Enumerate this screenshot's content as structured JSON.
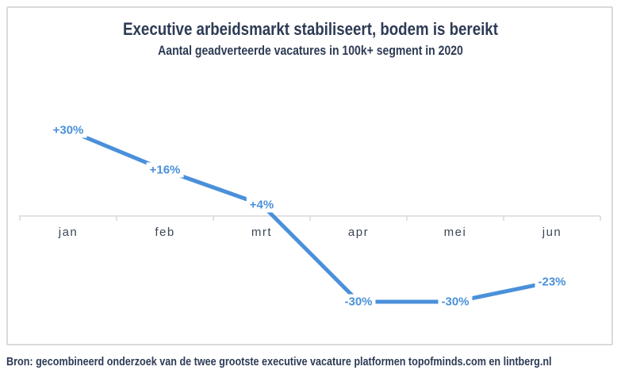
{
  "chart": {
    "title": "Executive arbeidsmarkt stabiliseert, bodem is bereikt",
    "subtitle": "Aantal geadverteerde vacatures in 100k+ segment in 2020",
    "source": "Bron: gecombineerd onderzoek van de twee grootste executive vacature platformen topofminds.com en lintberg.nl",
    "colors": {
      "line": "#4a90da",
      "data_label": "#4a90da",
      "title_text": "#2d3b55",
      "axis": "#d9d9d9",
      "month_label": "#3c4659",
      "card_border": "#dadada"
    }
  },
  "chart_data": {
    "type": "line",
    "categories": [
      "jan",
      "feb",
      "mrt",
      "apr",
      "mei",
      "jun"
    ],
    "values": [
      30,
      16,
      4,
      -30,
      -30,
      -23
    ],
    "data_labels": [
      "+30%",
      "+16%",
      "+4%",
      "-30%",
      "-30%",
      "-23%"
    ],
    "title": "Executive arbeidsmarkt stabiliseert, bodem is bereikt",
    "subtitle": "Aantal geadverteerde vacatures in 100k+ segment in 2020",
    "unit": "%",
    "ylim": [
      -40,
      40
    ],
    "xlabel": "",
    "ylabel": "",
    "grid": false,
    "legend": false,
    "baseline_at_zero": true,
    "annotation_source": "Bron: gecombineerd onderzoek van de twee grootste executive vacature platformen topofminds.com en lintberg.nl"
  }
}
